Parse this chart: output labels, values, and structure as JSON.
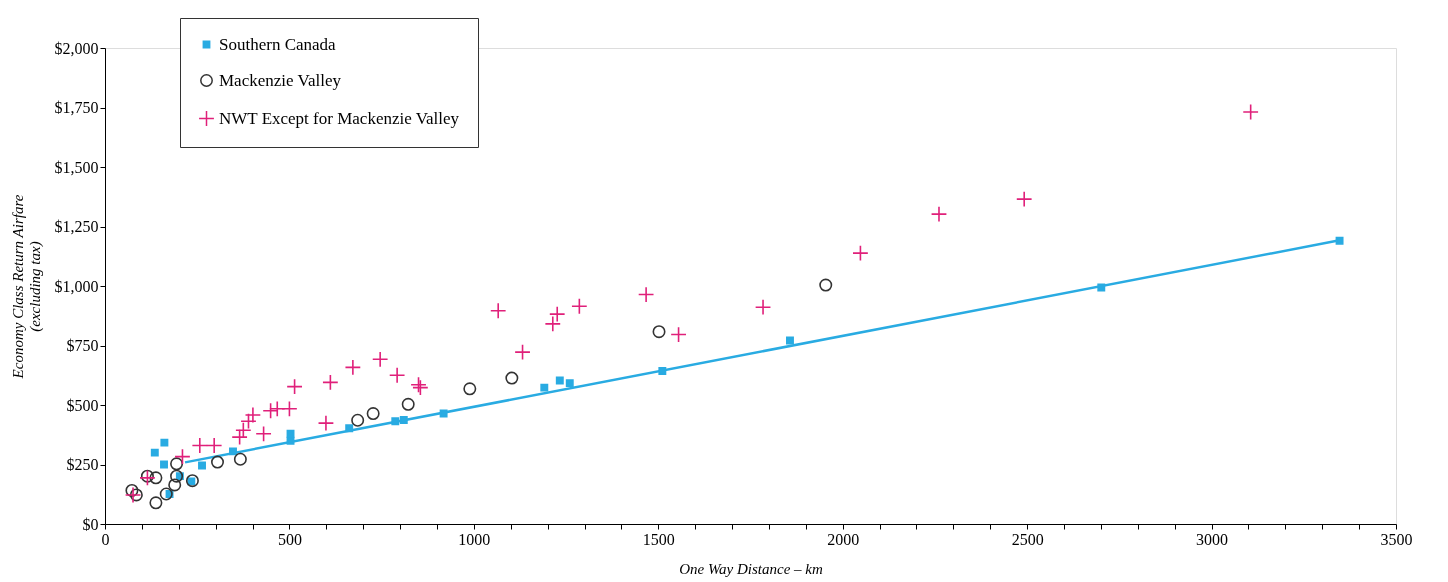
{
  "chart_data": {
    "type": "scatter",
    "xlabel": "One Way Distance – km",
    "ylabel": "Economy Class Return Airfare\n(excluding tax)",
    "xlim": [
      0,
      3500
    ],
    "xticks": [
      0,
      {
        "value": 100,
        "label": null
      },
      {
        "value": 200,
        "label": null
      },
      {
        "value": 300,
        "label": null
      },
      {
        "value": 400,
        "label": null
      },
      500,
      {
        "value": 600,
        "label": null
      },
      {
        "value": 700,
        "label": null
      },
      {
        "value": 800,
        "label": null
      },
      {
        "value": 900,
        "label": null
      },
      1000,
      {
        "value": 1100,
        "label": null
      },
      {
        "value": 1200,
        "label": null
      },
      {
        "value": 1300,
        "label": null
      },
      {
        "value": 1400,
        "label": null
      },
      1500,
      {
        "value": 1600,
        "label": null
      },
      {
        "value": 1700,
        "label": null
      },
      {
        "value": 1800,
        "label": null
      },
      {
        "value": 1900,
        "label": null
      },
      2000,
      {
        "value": 2100,
        "label": null
      },
      {
        "value": 2200,
        "label": null
      },
      {
        "value": 2300,
        "label": null
      },
      {
        "value": 2400,
        "label": null
      },
      2500,
      {
        "value": 2600,
        "label": null
      },
      {
        "value": 2700,
        "label": null
      },
      {
        "value": 2800,
        "label": null
      },
      {
        "value": 2900,
        "label": null
      },
      3000,
      {
        "value": 3100,
        "label": null
      },
      {
        "value": 3200,
        "label": null
      },
      {
        "value": 3300,
        "label": null
      },
      {
        "value": 3400,
        "label": null
      },
      3500
    ],
    "ylim": [
      0,
      2000
    ],
    "yticks": [
      {
        "value": 0,
        "label": "$0"
      },
      {
        "value": 250,
        "label": "$250"
      },
      {
        "value": 500,
        "label": "$500"
      },
      {
        "value": 750,
        "label": "$750"
      },
      {
        "value": 1000,
        "label": "$1,000"
      },
      {
        "value": 1250,
        "label": "$1,250"
      },
      {
        "value": 1500,
        "label": "$1,500"
      },
      {
        "value": 1750,
        "label": "$1,750"
      },
      {
        "value": 2000,
        "label": "$2,000"
      }
    ],
    "grid": false,
    "legend": "top left",
    "series": [
      {
        "type": "line",
        "color": "#29abe2",
        "marker": "none",
        "line_style": "solid",
        "x": [
          217,
          3347
        ],
        "values": [
          259,
          1192
        ]
      },
      {
        "name": "Southern Canada",
        "color": "#29abe2",
        "marker": "square",
        "x": [
          135,
          161,
          160,
          175,
          203,
          234,
          263,
          347,
          503,
          503,
          662,
          787,
          810,
          918,
          1191,
          1233,
          1260,
          1511,
          1857,
          2701,
          3347
        ],
        "values": [
          300,
          342,
          250,
          126,
          201,
          179,
          246,
          305,
          350,
          379,
          402,
          432,
          437,
          464,
          573,
          603,
          592,
          643,
          771,
          994,
          1190
        ]
      },
      {
        "name": "Mackenzie Valley",
        "color": "#333333",
        "marker": "circle",
        "x": [
          73,
          85,
          115,
          138,
          138,
          166,
          189,
          194,
          194,
          237,
          305,
          367,
          685,
          727,
          822,
          989,
          1103,
          1502,
          1954
        ],
        "values": [
          141,
          122,
          201,
          194,
          89,
          126,
          164,
          253,
          201,
          182,
          260,
          272,
          436,
          464,
          503,
          568,
          613,
          808,
          1004
        ]
      },
      {
        "name": "NWT Except for Mackenzie Valley",
        "color": "#e0207a",
        "marker": "cross",
        "x": [
          76,
          115,
          210,
          257,
          296,
          365,
          375,
          389,
          401,
          430,
          449,
          467,
          500,
          514,
          599,
          611,
          672,
          746,
          792,
          850,
          855,
          1066,
          1132,
          1214,
          1226,
          1286,
          1467,
          1555,
          1784,
          2048,
          2261,
          2492,
          3106
        ],
        "values": [
          122,
          194,
          283,
          330,
          330,
          365,
          394,
          432,
          458,
          379,
          476,
          484,
          484,
          577,
          424,
          595,
          658,
          692,
          625,
          585,
          573,
          896,
          722,
          841,
          882,
          915,
          964,
          796,
          911,
          1138,
          1302,
          1365,
          1731
        ]
      }
    ]
  }
}
